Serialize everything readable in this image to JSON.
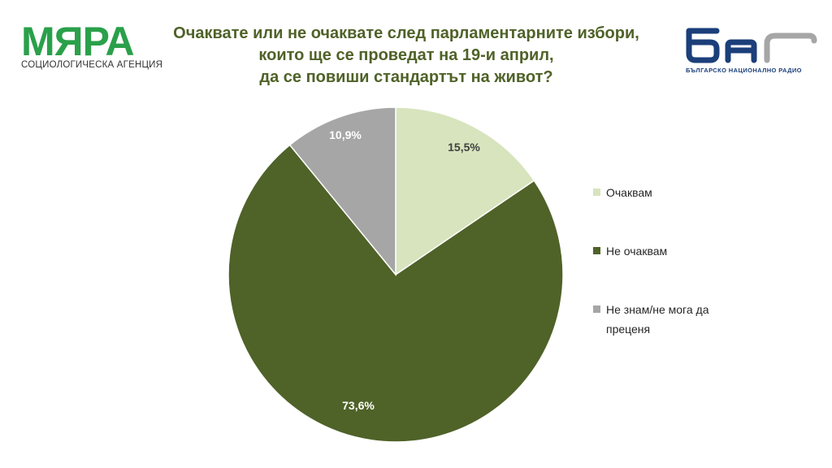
{
  "header": {
    "logo_left_brand": "МЯРА",
    "logo_left_sub": "СОЦИОЛОГИЧЕСКА АГЕНЦИЯ",
    "title_lines": [
      "Очаквате или не очаквате след парламентарните избори,",
      "които ще се проведат на 19-и април,",
      "да се повиши стандартът на живот?"
    ],
    "logo_right_tag": "БЪЛГАРСКО НАЦИОНАЛНО РАДИО"
  },
  "colors": {
    "title": "#4f6228",
    "brand_green": "#2aa04a",
    "brand_blue": "#1b3f7a",
    "logo_gray": "#a6a6a6"
  },
  "chart_data": {
    "type": "pie",
    "title": "Очаквате или не очаквате след парламентарните избори, които ще се проведат на 19-и април, да се повиши стандартът на живот?",
    "legend_position": "right",
    "start": "12 o'clock, clockwise",
    "slices": [
      {
        "label": "Очаквам",
        "value": 15.5,
        "display": "15,5%",
        "color": "#d7e4bd"
      },
      {
        "label": "Не очаквам",
        "value": 73.6,
        "display": "73,6%",
        "color": "#4f6228"
      },
      {
        "label": "Не знам/не мога да преценя",
        "value": 10.9,
        "display": "10,9%",
        "color": "#a6a6a6"
      }
    ]
  }
}
